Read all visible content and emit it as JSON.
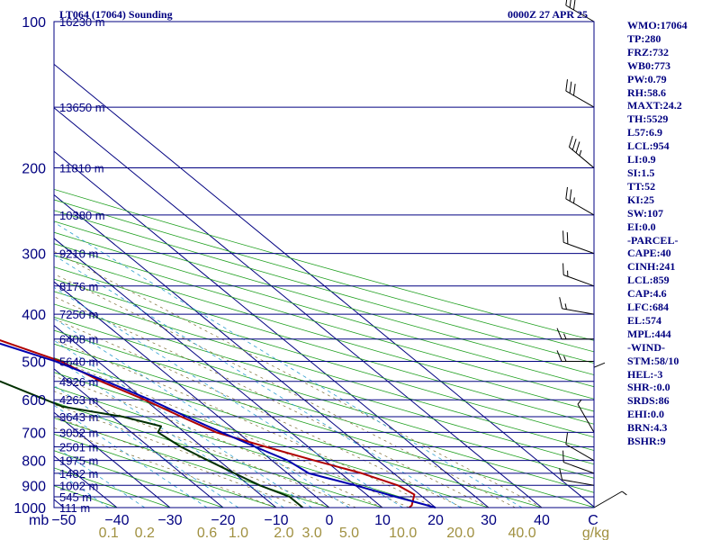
{
  "header": {
    "station": "LT064 (17064) Sounding",
    "time": "0000Z 27 APR 25"
  },
  "sidebar": [
    "WMO:17064",
    "TP:280",
    "FRZ:732",
    "WB0:773",
    "PW:0.79",
    "RH:58.6",
    "MAXT:24.2",
    "TH:5529",
    "L57:6.9",
    "LCL:954",
    "LI:0.9",
    "SI:1.5",
    "TT:52",
    "KI:25",
    "SW:107",
    "EI:0.0",
    "-PARCEL-",
    "CAPE:40",
    "CINH:241",
    "LCL:859",
    "CAP:4.6",
    "LFC:684",
    "EL:574",
    "MPL:444",
    "-WIND-",
    "STM:58/10",
    "HEL:-3",
    "SHR-:0.0",
    "SRDS:86",
    "EHI:0.0",
    "BRN:4.3",
    "BSHR:9"
  ],
  "chart_data": {
    "type": "skew-t",
    "xlabel_unit_left": "mb",
    "temperature_ticks": [
      -50,
      -40,
      -30,
      -20,
      -10,
      0,
      10,
      20,
      30,
      40
    ],
    "temperature_unit": "C",
    "mixing_ratio_ticks": [
      "0.1",
      "0.2",
      "0.6",
      "1.0",
      "2.0",
      "3.0",
      "5.0",
      "10.0",
      "20.0",
      "40.0"
    ],
    "mixing_ratio_unit": "g/kg",
    "pressure_ticks": [
      100,
      200,
      300,
      400,
      500,
      600,
      700,
      800,
      900,
      1000
    ],
    "pressure_range": [
      100,
      1000
    ],
    "height_labels": [
      {
        "p": 100,
        "label": "16230 m"
      },
      {
        "p": 150,
        "label": "13650 m"
      },
      {
        "p": 200,
        "label": "11810 m"
      },
      {
        "p": 250,
        "label": "10380 m"
      },
      {
        "p": 300,
        "label": "9210 m"
      },
      {
        "p": 350,
        "label": "8176 m"
      },
      {
        "p": 400,
        "label": "7250 m"
      },
      {
        "p": 450,
        "label": "6408 m"
      },
      {
        "p": 500,
        "label": "5640 m"
      },
      {
        "p": 550,
        "label": "4926 m"
      },
      {
        "p": 600,
        "label": "4263 m"
      },
      {
        "p": 650,
        "label": "3643 m"
      },
      {
        "p": 700,
        "label": "3052 m"
      },
      {
        "p": 750,
        "label": "2501 m"
      },
      {
        "p": 800,
        "label": "1975 m"
      },
      {
        "p": 850,
        "label": "1482 m"
      },
      {
        "p": 900,
        "label": "1002 m"
      },
      {
        "p": 950,
        "label": "545 m"
      },
      {
        "p": 1000,
        "label": "111 m"
      }
    ],
    "series": [
      {
        "color": "#b00000",
        "points": [
          [
            100,
            -46
          ],
          [
            150,
            -51
          ],
          [
            190,
            -57
          ],
          [
            230,
            -58
          ],
          [
            260,
            -60
          ],
          [
            300,
            -55
          ],
          [
            350,
            -43
          ],
          [
            385,
            -34
          ],
          [
            400,
            -29
          ],
          [
            450,
            -24
          ],
          [
            500,
            -17
          ],
          [
            550,
            -14
          ],
          [
            600,
            -10
          ],
          [
            650,
            -7
          ],
          [
            700,
            -4
          ],
          [
            750,
            2
          ],
          [
            800,
            8
          ],
          [
            850,
            14
          ],
          [
            900,
            18
          ],
          [
            940,
            19
          ],
          [
            990,
            16
          ],
          [
            1000,
            15
          ]
        ]
      },
      {
        "color": "#0000b0",
        "points": [
          [
            120,
            -83
          ],
          [
            150,
            -80
          ],
          [
            200,
            -73
          ],
          [
            250,
            -66
          ],
          [
            300,
            -58
          ],
          [
            350,
            -48
          ],
          [
            400,
            -37
          ],
          [
            450,
            -26
          ],
          [
            500,
            -18
          ],
          [
            550,
            -13
          ],
          [
            600,
            -9
          ],
          [
            650,
            -6
          ],
          [
            700,
            -3
          ],
          [
            750,
            0
          ],
          [
            800,
            3
          ],
          [
            850,
            4
          ],
          [
            900,
            10
          ],
          [
            950,
            15
          ],
          [
            1000,
            20
          ]
        ]
      },
      {
        "color": "#003000",
        "points": [
          [
            270,
            -72
          ],
          [
            300,
            -69
          ],
          [
            350,
            -64
          ],
          [
            400,
            -64
          ],
          [
            430,
            -65
          ],
          [
            450,
            -52
          ],
          [
            500,
            -38
          ],
          [
            550,
            -33
          ],
          [
            620,
            -27
          ],
          [
            650,
            -18
          ],
          [
            680,
            -13
          ],
          [
            700,
            -15
          ],
          [
            750,
            -14
          ],
          [
            800,
            -12
          ],
          [
            850,
            -10
          ],
          [
            900,
            -8
          ],
          [
            950,
            -5
          ],
          [
            1000,
            -5
          ]
        ]
      }
    ],
    "wind_barbs": [
      {
        "p": 100,
        "dir": 300,
        "speed": 30
      },
      {
        "p": 150,
        "dir": 300,
        "speed": 30
      },
      {
        "p": 200,
        "dir": 310,
        "speed": 35
      },
      {
        "p": 250,
        "dir": 300,
        "speed": 25
      },
      {
        "p": 300,
        "dir": 290,
        "speed": 20
      },
      {
        "p": 350,
        "dir": 290,
        "speed": 15
      },
      {
        "p": 400,
        "dir": 280,
        "speed": 15
      },
      {
        "p": 450,
        "dir": 270,
        "speed": 15
      },
      {
        "p": 500,
        "dir": 270,
        "speed": 15
      },
      {
        "p": 600,
        "dir": 360,
        "speed": 10
      },
      {
        "p": 700,
        "dir": 330,
        "speed": 5
      },
      {
        "p": 800,
        "dir": 300,
        "speed": 10
      },
      {
        "p": 850,
        "dir": 290,
        "speed": 10
      },
      {
        "p": 900,
        "dir": 280,
        "speed": 10
      },
      {
        "p": 1000,
        "dir": 60,
        "speed": 5
      }
    ]
  }
}
